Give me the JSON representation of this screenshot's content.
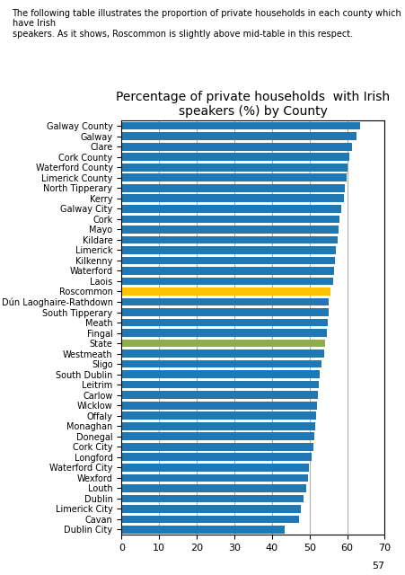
{
  "chart_data": {
    "type": "bar",
    "orientation": "horizontal",
    "title": "Percentage of private households  with Irish\nspeakers (%) by County",
    "subtitle": "The following table illustrates the proportion of private households in each county which have Irish\nspeakers. As it shows, Roscommon is slightly above mid-table in this respect.",
    "annotations": [
      "57"
    ],
    "categories": [
      "Galway County",
      "Galway",
      "Clare",
      "Cork County",
      "Waterford County",
      "Limerick County",
      "North Tipperary",
      "Kerry",
      "Galway City",
      "Cork",
      "Mayo",
      "Kildare",
      "Limerick",
      "Kilkenny",
      "Waterford",
      "Laois",
      "Roscommon",
      "Dún Laoghaire-Rathdown",
      "South Tipperary",
      "Meath",
      "Fingal",
      "State",
      "Westmeath",
      "Sligo",
      "South Dublin",
      "Leitrim",
      "Carlow",
      "Wicklow",
      "Offaly",
      "Monaghan",
      "Donegal",
      "Cork City",
      "Longford",
      "Waterford City",
      "Wexford",
      "Louth",
      "Dublin",
      "Limerick City",
      "Cavan",
      "Dublin City"
    ],
    "values": [
      63.5,
      62.5,
      61.2,
      60.5,
      60.0,
      59.8,
      59.5,
      59.2,
      58.5,
      58.0,
      57.8,
      57.5,
      57.0,
      56.8,
      56.5,
      56.2,
      55.5,
      55.2,
      55.0,
      54.8,
      54.5,
      54.2,
      53.8,
      53.2,
      52.8,
      52.5,
      52.2,
      52.0,
      51.8,
      51.5,
      51.2,
      51.0,
      50.5,
      49.8,
      49.5,
      49.2,
      48.5,
      47.8,
      47.2,
      43.5
    ],
    "colors": [
      "#1f77b4",
      "#1f77b4",
      "#1f77b4",
      "#1f77b4",
      "#1f77b4",
      "#1f77b4",
      "#1f77b4",
      "#1f77b4",
      "#1f77b4",
      "#1f77b4",
      "#1f77b4",
      "#1f77b4",
      "#1f77b4",
      "#1f77b4",
      "#1f77b4",
      "#1f77b4",
      "#FFC000",
      "#1f77b4",
      "#1f77b4",
      "#1f77b4",
      "#1f77b4",
      "#8DAE48",
      "#1f77b4",
      "#1f77b4",
      "#1f77b4",
      "#1f77b4",
      "#1f77b4",
      "#1f77b4",
      "#1f77b4",
      "#1f77b4",
      "#1f77b4",
      "#1f77b4",
      "#1f77b4",
      "#1f77b4",
      "#1f77b4",
      "#1f77b4",
      "#1f77b4",
      "#1f77b4",
      "#1f77b4",
      "#1f77b4"
    ],
    "xlim": [
      0,
      70
    ],
    "xticks": [
      0,
      10,
      20,
      30,
      40,
      50,
      60,
      70
    ],
    "grid": true
  }
}
